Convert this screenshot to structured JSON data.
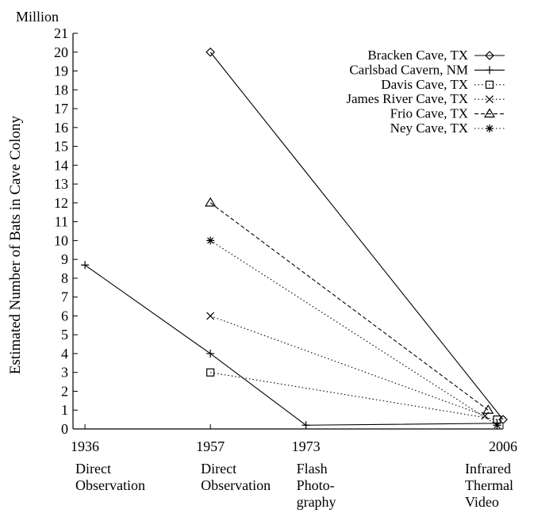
{
  "chart_data": {
    "type": "line",
    "unit_label": "Million",
    "ylabel": "Estimated Number of Bats in Cave Colony",
    "ylim": [
      0,
      21
    ],
    "yticks": [
      0,
      1,
      2,
      3,
      4,
      5,
      6,
      7,
      8,
      9,
      10,
      11,
      12,
      13,
      14,
      15,
      16,
      17,
      18,
      19,
      20,
      21
    ],
    "xlim": [
      1934,
      2006
    ],
    "xticks": [
      {
        "year": 1936,
        "label": "1936",
        "method": [
          "Direct",
          "Observation"
        ]
      },
      {
        "year": 1957,
        "label": "1957",
        "method": [
          "Direct",
          "Observation"
        ]
      },
      {
        "year": 1973,
        "label": "1973",
        "method": [
          "Flash",
          "Photo-",
          "graphy"
        ]
      },
      {
        "year": 2006,
        "label": "2006",
        "method": [
          "Infrared",
          "Thermal",
          "Video"
        ]
      }
    ],
    "legend_position": "top-right",
    "series": [
      {
        "name": "Bracken Cave, TX",
        "marker": "diamond",
        "dash": "solid",
        "points": [
          [
            1957,
            20
          ],
          [
            2006,
            0.5
          ]
        ]
      },
      {
        "name": "Carlsbad Cavern, NM",
        "marker": "plus",
        "dash": "solid",
        "points": [
          [
            1936,
            8.7
          ],
          [
            1957,
            4
          ],
          [
            1973,
            0.2
          ],
          [
            2005,
            0.3
          ]
        ]
      },
      {
        "name": "Davis Cave, TX",
        "marker": "square",
        "dash": "dotted",
        "points": [
          [
            1957,
            3
          ],
          [
            2005,
            0.5
          ]
        ]
      },
      {
        "name": "James River Cave, TX",
        "marker": "x",
        "dash": "dotted",
        "points": [
          [
            1957,
            6
          ],
          [
            2003,
            0.7
          ]
        ]
      },
      {
        "name": "Frio Cave, TX",
        "marker": "triangle",
        "dash": "dashed",
        "points": [
          [
            1957,
            12
          ],
          [
            2003.5,
            1
          ]
        ]
      },
      {
        "name": "Ney Cave, TX",
        "marker": "asterisk",
        "dash": "dotted",
        "points": [
          [
            1957,
            10
          ],
          [
            2005,
            0.2
          ]
        ]
      }
    ]
  }
}
